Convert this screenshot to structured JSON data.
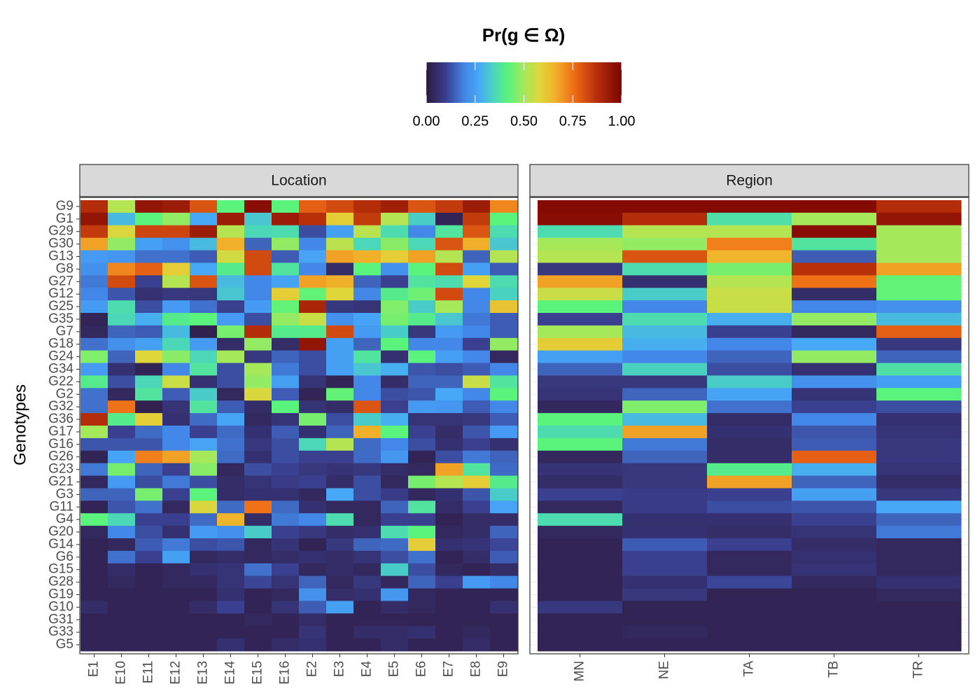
{
  "chart_data": {
    "type": "heatmap",
    "legend_title": "Pr(g ∈ Ω)",
    "y_label": "Genotypes",
    "clim": [
      0,
      1
    ],
    "cticks": [
      {
        "value": 0,
        "label": "0.00"
      },
      {
        "value": 0.25,
        "label": "0.25"
      },
      {
        "value": 0.5,
        "label": "0.50"
      },
      {
        "value": 0.75,
        "label": "0.75"
      },
      {
        "value": 1,
        "label": "1.00"
      }
    ],
    "colorscale": [
      [
        0,
        "#2e1a3e"
      ],
      [
        0.1,
        "#3a3f8f"
      ],
      [
        0.2,
        "#4388e8"
      ],
      [
        0.27,
        "#46a8f7"
      ],
      [
        0.35,
        "#4ad8b8"
      ],
      [
        0.42,
        "#5af37c"
      ],
      [
        0.5,
        "#a5e85a"
      ],
      [
        0.58,
        "#dfd63a"
      ],
      [
        0.66,
        "#f1b02a"
      ],
      [
        0.76,
        "#ef6a16"
      ],
      [
        0.87,
        "#b8300a"
      ],
      [
        1,
        "#7a0403"
      ]
    ],
    "rows": [
      "G9",
      "G1",
      "G29",
      "G30",
      "G13",
      "G8",
      "G27",
      "G12",
      "G25",
      "G35",
      "G7",
      "G18",
      "G24",
      "G34",
      "G22",
      "G2",
      "G32",
      "G36",
      "G17",
      "G16",
      "G26",
      "G23",
      "G21",
      "G3",
      "G11",
      "G4",
      "G20",
      "G14",
      "G6",
      "G15",
      "G28",
      "G19",
      "G10",
      "G31",
      "G33",
      "G5"
    ],
    "facets": [
      {
        "title": "Location",
        "columns": [
          "E1",
          "E10",
          "E11",
          "E12",
          "E13",
          "E14",
          "E15",
          "E16",
          "E2",
          "E3",
          "E4",
          "E5",
          "E6",
          "E7",
          "E8",
          "E9"
        ],
        "values": [
          [
            0.88,
            0.52,
            0.95,
            0.93,
            0.8,
            0.42,
            0.97,
            0.42,
            0.78,
            0.82,
            0.88,
            0.92,
            0.8,
            0.85,
            0.93,
            0.72
          ],
          [
            0.95,
            0.3,
            0.42,
            0.48,
            0.27,
            0.93,
            0.32,
            0.93,
            0.87,
            0.6,
            0.85,
            0.52,
            0.33,
            0.03,
            0.85,
            0.42
          ],
          [
            0.85,
            0.57,
            0.83,
            0.83,
            0.93,
            0.52,
            0.35,
            0.36,
            0.12,
            0.25,
            0.53,
            0.36,
            0.2,
            0.38,
            0.8,
            0.36
          ],
          [
            0.68,
            0.48,
            0.25,
            0.22,
            0.3,
            0.66,
            0.15,
            0.48,
            0.2,
            0.53,
            0.35,
            0.47,
            0.35,
            0.8,
            0.66,
            0.32
          ],
          [
            0.24,
            0.23,
            0.17,
            0.17,
            0.14,
            0.56,
            0.82,
            0.14,
            0.26,
            0.68,
            0.66,
            0.6,
            0.68,
            0.52,
            0.15,
            0.52
          ],
          [
            0.22,
            0.72,
            0.78,
            0.6,
            0.27,
            0.4,
            0.82,
            0.38,
            0.2,
            0.05,
            0.42,
            0.22,
            0.42,
            0.82,
            0.25,
            0.14
          ],
          [
            0.18,
            0.82,
            0.1,
            0.52,
            0.8,
            0.3,
            0.2,
            0.26,
            0.68,
            0.66,
            0.15,
            0.1,
            0.38,
            0.36,
            0.58,
            0.36
          ],
          [
            0.2,
            0.13,
            0.06,
            0.08,
            0.08,
            0.32,
            0.2,
            0.6,
            0.43,
            0.58,
            0.2,
            0.4,
            0.44,
            0.82,
            0.2,
            0.34
          ],
          [
            0.24,
            0.36,
            0.12,
            0.24,
            0.17,
            0.1,
            0.24,
            0.43,
            0.9,
            0.08,
            0.07,
            0.46,
            0.33,
            0.5,
            0.2,
            0.62
          ],
          [
            0.03,
            0.35,
            0.28,
            0.4,
            0.42,
            0.24,
            0.12,
            0.48,
            0.55,
            0.22,
            0.26,
            0.45,
            0.4,
            0.32,
            0.18,
            0.14
          ],
          [
            0.04,
            0.15,
            0.14,
            0.3,
            0.02,
            0.45,
            0.88,
            0.4,
            0.4,
            0.82,
            0.24,
            0.33,
            0.08,
            0.24,
            0.2,
            0.14
          ],
          [
            0.17,
            0.22,
            0.25,
            0.35,
            0.24,
            0.05,
            0.48,
            0.05,
            0.95,
            0.25,
            0.15,
            0.42,
            0.2,
            0.2,
            0.1,
            0.48
          ],
          [
            0.46,
            0.15,
            0.58,
            0.47,
            0.35,
            0.5,
            0.08,
            0.15,
            0.12,
            0.25,
            0.38,
            0.06,
            0.42,
            0.25,
            0.2,
            0.04
          ],
          [
            0.24,
            0.06,
            0.03,
            0.2,
            0.38,
            0.12,
            0.5,
            0.18,
            0.12,
            0.25,
            0.32,
            0.28,
            0.13,
            0.12,
            0.14,
            0.2
          ],
          [
            0.4,
            0.12,
            0.35,
            0.55,
            0.06,
            0.12,
            0.48,
            0.25,
            0.07,
            0.03,
            0.2,
            0.05,
            0.15,
            0.15,
            0.55,
            0.38
          ],
          [
            0.17,
            0.04,
            0.38,
            0.14,
            0.33,
            0.04,
            0.57,
            0.14,
            0.03,
            0.43,
            0.2,
            0.12,
            0.13,
            0.27,
            0.2,
            0.42
          ],
          [
            0.17,
            0.75,
            0.02,
            0.07,
            0.38,
            0.14,
            0.05,
            0.42,
            0.07,
            0.05,
            0.8,
            0.1,
            0.24,
            0.23,
            0.14,
            0.2
          ],
          [
            0.88,
            0.4,
            0.6,
            0.06,
            0.16,
            0.26,
            0.04,
            0.07,
            0.45,
            0.12,
            0.33,
            0.28,
            0.07,
            0.07,
            0.08,
            0.14
          ],
          [
            0.5,
            0.1,
            0.16,
            0.2,
            0.1,
            0.16,
            0.06,
            0.14,
            0.06,
            0.15,
            0.66,
            0.42,
            0.1,
            0.05,
            0.13,
            0.24
          ],
          [
            0.13,
            0.13,
            0.13,
            0.2,
            0.26,
            0.17,
            0.08,
            0.12,
            0.35,
            0.52,
            0.16,
            0.2,
            0.12,
            0.06,
            0.1,
            0.06
          ],
          [
            0.03,
            0.26,
            0.73,
            0.68,
            0.5,
            0.16,
            0.06,
            0.12,
            0.1,
            0.1,
            0.16,
            0.23,
            0.03,
            0.12,
            0.18,
            0.15
          ],
          [
            0.18,
            0.45,
            0.15,
            0.1,
            0.47,
            0.04,
            0.12,
            0.1,
            0.08,
            0.07,
            0.08,
            0.05,
            0.04,
            0.68,
            0.38,
            0.16
          ],
          [
            0.04,
            0.24,
            0.12,
            0.18,
            0.12,
            0.05,
            0.07,
            0.09,
            0.1,
            0.05,
            0.12,
            0.04,
            0.45,
            0.52,
            0.6,
            0.4
          ],
          [
            0.15,
            0.15,
            0.45,
            0.1,
            0.42,
            0.05,
            0.06,
            0.06,
            0.04,
            0.27,
            0.12,
            0.09,
            0.04,
            0.06,
            0.13,
            0.33
          ],
          [
            0.03,
            0.13,
            0.17,
            0.04,
            0.57,
            0.16,
            0.75,
            0.16,
            0.06,
            0.04,
            0.04,
            0.15,
            0.38,
            0.05,
            0.1,
            0.26
          ],
          [
            0.42,
            0.35,
            0.1,
            0.1,
            0.16,
            0.65,
            0.05,
            0.18,
            0.2,
            0.36,
            0.04,
            0.1,
            0.1,
            0.03,
            0.05,
            0.05
          ],
          [
            0.04,
            0.2,
            0.12,
            0.06,
            0.24,
            0.22,
            0.33,
            0.1,
            0.08,
            0.05,
            0.06,
            0.36,
            0.42,
            0.04,
            0.05,
            0.15
          ],
          [
            0.03,
            0.04,
            0.14,
            0.18,
            0.12,
            0.13,
            0.04,
            0.07,
            0.03,
            0.08,
            0.15,
            0.16,
            0.6,
            0.06,
            0.07,
            0.11
          ],
          [
            0.03,
            0.17,
            0.1,
            0.25,
            0.04,
            0.05,
            0.04,
            0.05,
            0.06,
            0.05,
            0.07,
            0.12,
            0.17,
            0.03,
            0.05,
            0.14
          ],
          [
            0.03,
            0.05,
            0.03,
            0.04,
            0.06,
            0.07,
            0.17,
            0.1,
            0.04,
            0.05,
            0.04,
            0.33,
            0.12,
            0.04,
            0.03,
            0.05
          ],
          [
            0.03,
            0.04,
            0.03,
            0.04,
            0.04,
            0.07,
            0.11,
            0.07,
            0.15,
            0.04,
            0.08,
            0.04,
            0.15,
            0.1,
            0.24,
            0.2
          ],
          [
            0.03,
            0.03,
            0.03,
            0.03,
            0.03,
            0.06,
            0.03,
            0.04,
            0.22,
            0.05,
            0.06,
            0.23,
            0.04,
            0.03,
            0.03,
            0.03
          ],
          [
            0.05,
            0.03,
            0.03,
            0.03,
            0.05,
            0.1,
            0.03,
            0.07,
            0.14,
            0.25,
            0.03,
            0.05,
            0.04,
            0.03,
            0.03,
            0.06
          ],
          [
            0.03,
            0.03,
            0.03,
            0.03,
            0.03,
            0.03,
            0.04,
            0.03,
            0.05,
            0.03,
            0.03,
            0.03,
            0.03,
            0.03,
            0.03,
            0.03
          ],
          [
            0.03,
            0.03,
            0.03,
            0.03,
            0.03,
            0.03,
            0.03,
            0.03,
            0.07,
            0.03,
            0.05,
            0.05,
            0.06,
            0.03,
            0.04,
            0.03
          ],
          [
            0.03,
            0.03,
            0.03,
            0.03,
            0.03,
            0.06,
            0.03,
            0.05,
            0.06,
            0.03,
            0.03,
            0.05,
            0.03,
            0.03,
            0.05,
            0.03
          ]
        ]
      },
      {
        "title": "Region",
        "columns": [
          "MN",
          "NE",
          "TA",
          "TB",
          "TR"
        ],
        "values": [
          [
            0.98,
            0.98,
            0.98,
            0.98,
            0.88
          ],
          [
            0.97,
            0.88,
            0.37,
            0.5,
            0.95
          ],
          [
            0.36,
            0.52,
            0.52,
            0.97,
            0.5
          ],
          [
            0.5,
            0.48,
            0.73,
            0.38,
            0.5
          ],
          [
            0.52,
            0.8,
            0.65,
            0.14,
            0.5
          ],
          [
            0.08,
            0.36,
            0.45,
            0.87,
            0.68
          ],
          [
            0.68,
            0.06,
            0.52,
            0.75,
            0.43
          ],
          [
            0.55,
            0.33,
            0.55,
            0.05,
            0.43
          ],
          [
            0.42,
            0.2,
            0.55,
            0.2,
            0.22
          ],
          [
            0.1,
            0.36,
            0.28,
            0.48,
            0.3
          ],
          [
            0.5,
            0.3,
            0.1,
            0.04,
            0.78
          ],
          [
            0.6,
            0.28,
            0.2,
            0.27,
            0.08
          ],
          [
            0.25,
            0.2,
            0.15,
            0.48,
            0.15
          ],
          [
            0.15,
            0.34,
            0.12,
            0.06,
            0.37
          ],
          [
            0.08,
            0.08,
            0.33,
            0.22,
            0.25
          ],
          [
            0.07,
            0.15,
            0.26,
            0.07,
            0.42
          ],
          [
            0.04,
            0.46,
            0.17,
            0.1,
            0.12
          ],
          [
            0.42,
            0.3,
            0.05,
            0.2,
            0.06
          ],
          [
            0.36,
            0.68,
            0.06,
            0.13,
            0.07
          ],
          [
            0.42,
            0.18,
            0.05,
            0.14,
            0.08
          ],
          [
            0.04,
            0.15,
            0.05,
            0.78,
            0.08
          ],
          [
            0.07,
            0.08,
            0.4,
            0.28,
            0.07
          ],
          [
            0.05,
            0.08,
            0.68,
            0.15,
            0.05
          ],
          [
            0.1,
            0.09,
            0.1,
            0.25,
            0.08
          ],
          [
            0.04,
            0.09,
            0.12,
            0.13,
            0.27
          ],
          [
            0.36,
            0.06,
            0.06,
            0.1,
            0.15
          ],
          [
            0.04,
            0.06,
            0.05,
            0.07,
            0.18
          ],
          [
            0.03,
            0.14,
            0.1,
            0.05,
            0.04
          ],
          [
            0.03,
            0.1,
            0.04,
            0.06,
            0.04
          ],
          [
            0.03,
            0.1,
            0.04,
            0.07,
            0.04
          ],
          [
            0.03,
            0.06,
            0.11,
            0.04,
            0.06
          ],
          [
            0.03,
            0.08,
            0.03,
            0.03,
            0.04
          ],
          [
            0.08,
            0.03,
            0.03,
            0.03,
            0.03
          ],
          [
            0.03,
            0.03,
            0.03,
            0.03,
            0.03
          ],
          [
            0.03,
            0.04,
            0.03,
            0.03,
            0.03
          ],
          [
            0.03,
            0.03,
            0.03,
            0.03,
            0.03
          ]
        ]
      }
    ]
  }
}
